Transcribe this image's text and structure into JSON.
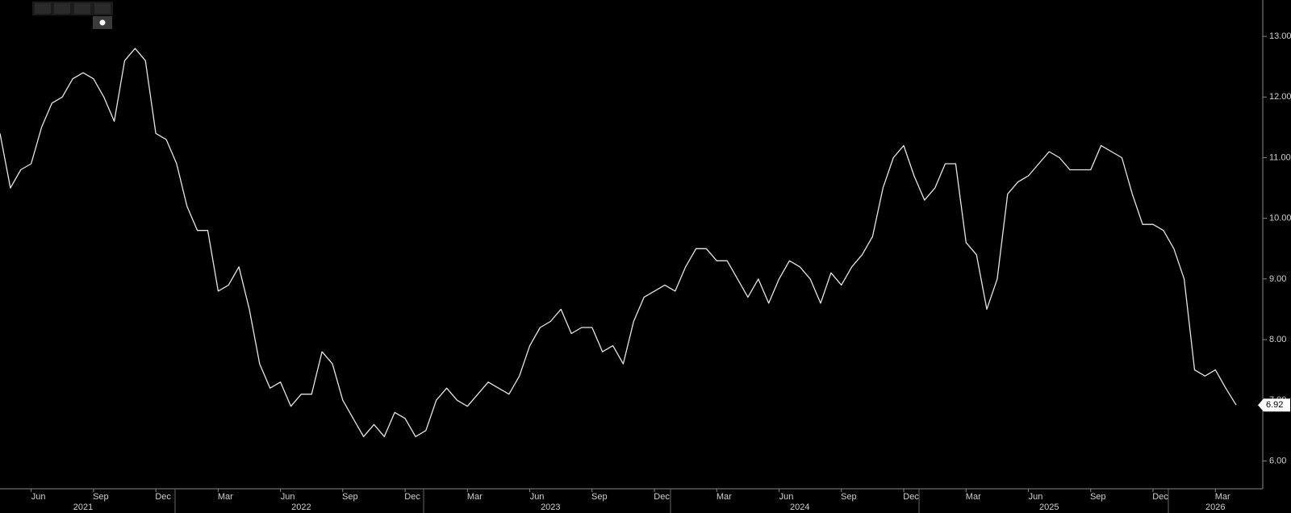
{
  "chart_data": {
    "type": "line",
    "categories": [
      null,
      null,
      null,
      "Jun",
      null,
      null,
      null,
      null,
      null,
      "Sep",
      null,
      null,
      null,
      null,
      null,
      "Dec",
      null,
      null,
      null,
      null,
      null,
      "Mar",
      null,
      null,
      null,
      null,
      null,
      "Jun",
      null,
      null,
      null,
      null,
      null,
      "Sep",
      null,
      null,
      null,
      null,
      null,
      "Dec",
      null,
      null,
      null,
      null,
      null,
      "Mar",
      null,
      null,
      null,
      null,
      null,
      "Jun",
      null,
      null,
      null,
      null,
      null,
      "Sep",
      null,
      null,
      null,
      null,
      null,
      "Dec",
      null,
      null,
      null,
      null,
      null,
      "Mar",
      null,
      null,
      null,
      null,
      null,
      "Jun",
      null,
      null,
      null,
      null,
      null,
      "Sep",
      null,
      null,
      null,
      null,
      null,
      "Dec",
      null,
      null,
      null,
      null,
      null,
      "Mar",
      null,
      null,
      null,
      null,
      null,
      "Jun",
      null,
      null,
      null,
      null,
      null,
      "Sep",
      null,
      null,
      null,
      null,
      null,
      "Dec",
      null,
      null,
      null,
      null,
      null,
      "Mar",
      null,
      null
    ],
    "years": [
      null,
      null,
      null,
      null,
      null,
      null,
      null,
      null,
      "2021",
      null,
      null,
      null,
      null,
      null,
      null,
      null,
      null,
      null,
      null,
      null,
      null,
      null,
      null,
      null,
      null,
      null,
      null,
      null,
      null,
      "2022",
      null,
      null,
      null,
      null,
      null,
      null,
      null,
      null,
      null,
      null,
      null,
      null,
      null,
      null,
      null,
      null,
      null,
      null,
      null,
      null,
      null,
      null,
      null,
      "2023",
      null,
      null,
      null,
      null,
      null,
      null,
      null,
      null,
      null,
      null,
      null,
      null,
      null,
      null,
      null,
      null,
      null,
      null,
      null,
      null,
      null,
      null,
      null,
      "2024",
      null,
      null,
      null,
      null,
      null,
      null,
      null,
      null,
      null,
      null,
      null,
      null,
      null,
      null,
      null,
      null,
      null,
      null,
      null,
      null,
      null,
      null,
      null,
      "2025",
      null,
      null,
      null,
      null,
      null,
      null,
      null,
      null,
      null,
      null,
      null,
      null,
      null,
      null,
      null,
      "2026",
      null,
      null
    ],
    "series": [
      {
        "color": "#e6e6e6",
        "values": [
          11.4,
          10.5,
          10.8,
          10.9,
          11.5,
          11.9,
          12.0,
          12.3,
          12.4,
          12.3,
          12.0,
          11.6,
          12.6,
          12.8,
          12.6,
          11.4,
          11.3,
          10.9,
          10.2,
          9.8,
          9.8,
          8.8,
          8.9,
          9.2,
          8.5,
          7.6,
          7.2,
          7.3,
          6.9,
          7.1,
          7.1,
          7.8,
          7.6,
          7.0,
          6.7,
          6.4,
          6.6,
          6.4,
          6.8,
          6.7,
          6.4,
          6.5,
          7.0,
          7.2,
          7.0,
          6.9,
          7.1,
          7.3,
          7.2,
          7.1,
          7.4,
          7.9,
          8.2,
          8.3,
          8.5,
          8.1,
          8.2,
          8.2,
          7.8,
          7.9,
          7.6,
          8.3,
          8.7,
          8.8,
          8.9,
          8.8,
          9.2,
          9.5,
          9.5,
          9.3,
          9.3,
          9.0,
          8.7,
          9.0,
          8.6,
          9.0,
          9.3,
          9.2,
          9.0,
          8.6,
          9.1,
          8.9,
          9.2,
          9.4,
          9.7,
          10.5,
          11.0,
          11.2,
          10.7,
          10.3,
          10.5,
          10.9,
          10.9,
          9.6,
          9.4,
          8.5,
          9.0,
          10.4,
          10.6,
          10.7,
          10.9,
          11.1,
          11.0,
          10.8,
          10.8,
          10.8,
          11.2,
          11.1,
          11.0,
          10.4,
          9.9,
          9.9,
          9.8,
          9.5,
          9.0,
          7.5,
          7.4,
          7.5,
          7.2,
          6.92
        ]
      }
    ],
    "ylim": [
      5.54,
      13.6
    ],
    "yticks": [
      {
        "value": 6,
        "label": "6.00"
      },
      {
        "value": 7,
        "label": "7.00"
      },
      {
        "value": 8,
        "label": "8.00"
      },
      {
        "value": 9,
        "label": "9.00"
      },
      {
        "value": 10,
        "label": "10.00"
      },
      {
        "value": 11,
        "label": "11.00"
      },
      {
        "value": 12,
        "label": "12.00"
      },
      {
        "value": 13,
        "label": "13.00"
      }
    ]
  }
}
